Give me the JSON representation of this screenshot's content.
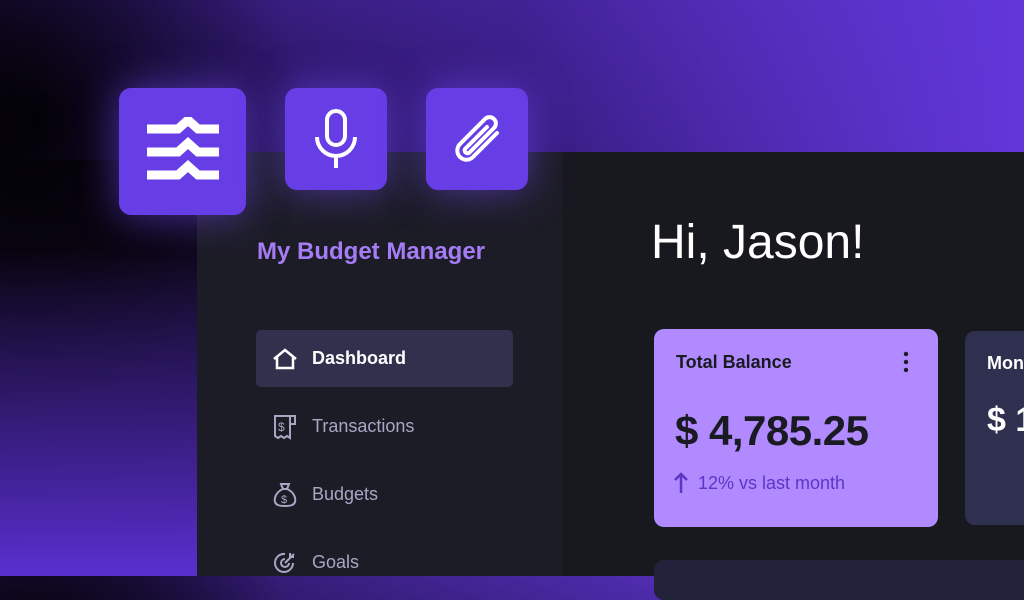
{
  "app": {
    "title": "My Budget Manager",
    "greeting": "Hi, Jason!"
  },
  "toolbar_tiles": [
    {
      "icon": "waves-icon"
    },
    {
      "icon": "microphone-icon"
    },
    {
      "icon": "paperclip-icon"
    }
  ],
  "sidebar": {
    "items": [
      {
        "label": "Dashboard",
        "icon": "home-icon",
        "active": true
      },
      {
        "label": "Transactions",
        "icon": "receipt-icon"
      },
      {
        "label": "Budgets",
        "icon": "money-bag-icon"
      },
      {
        "label": "Goals",
        "icon": "target-icon"
      }
    ]
  },
  "cards": [
    {
      "title": "Total Balance",
      "value": "$ 4,785.25",
      "change": "12% vs last month",
      "change_direction": "up"
    },
    {
      "title": "Mon",
      "value": "$ 1"
    }
  ],
  "colors": {
    "accent": "#673de6",
    "card": "#b08afe",
    "brand_text": "#a57cf5",
    "change_text": "#5b36c7"
  }
}
